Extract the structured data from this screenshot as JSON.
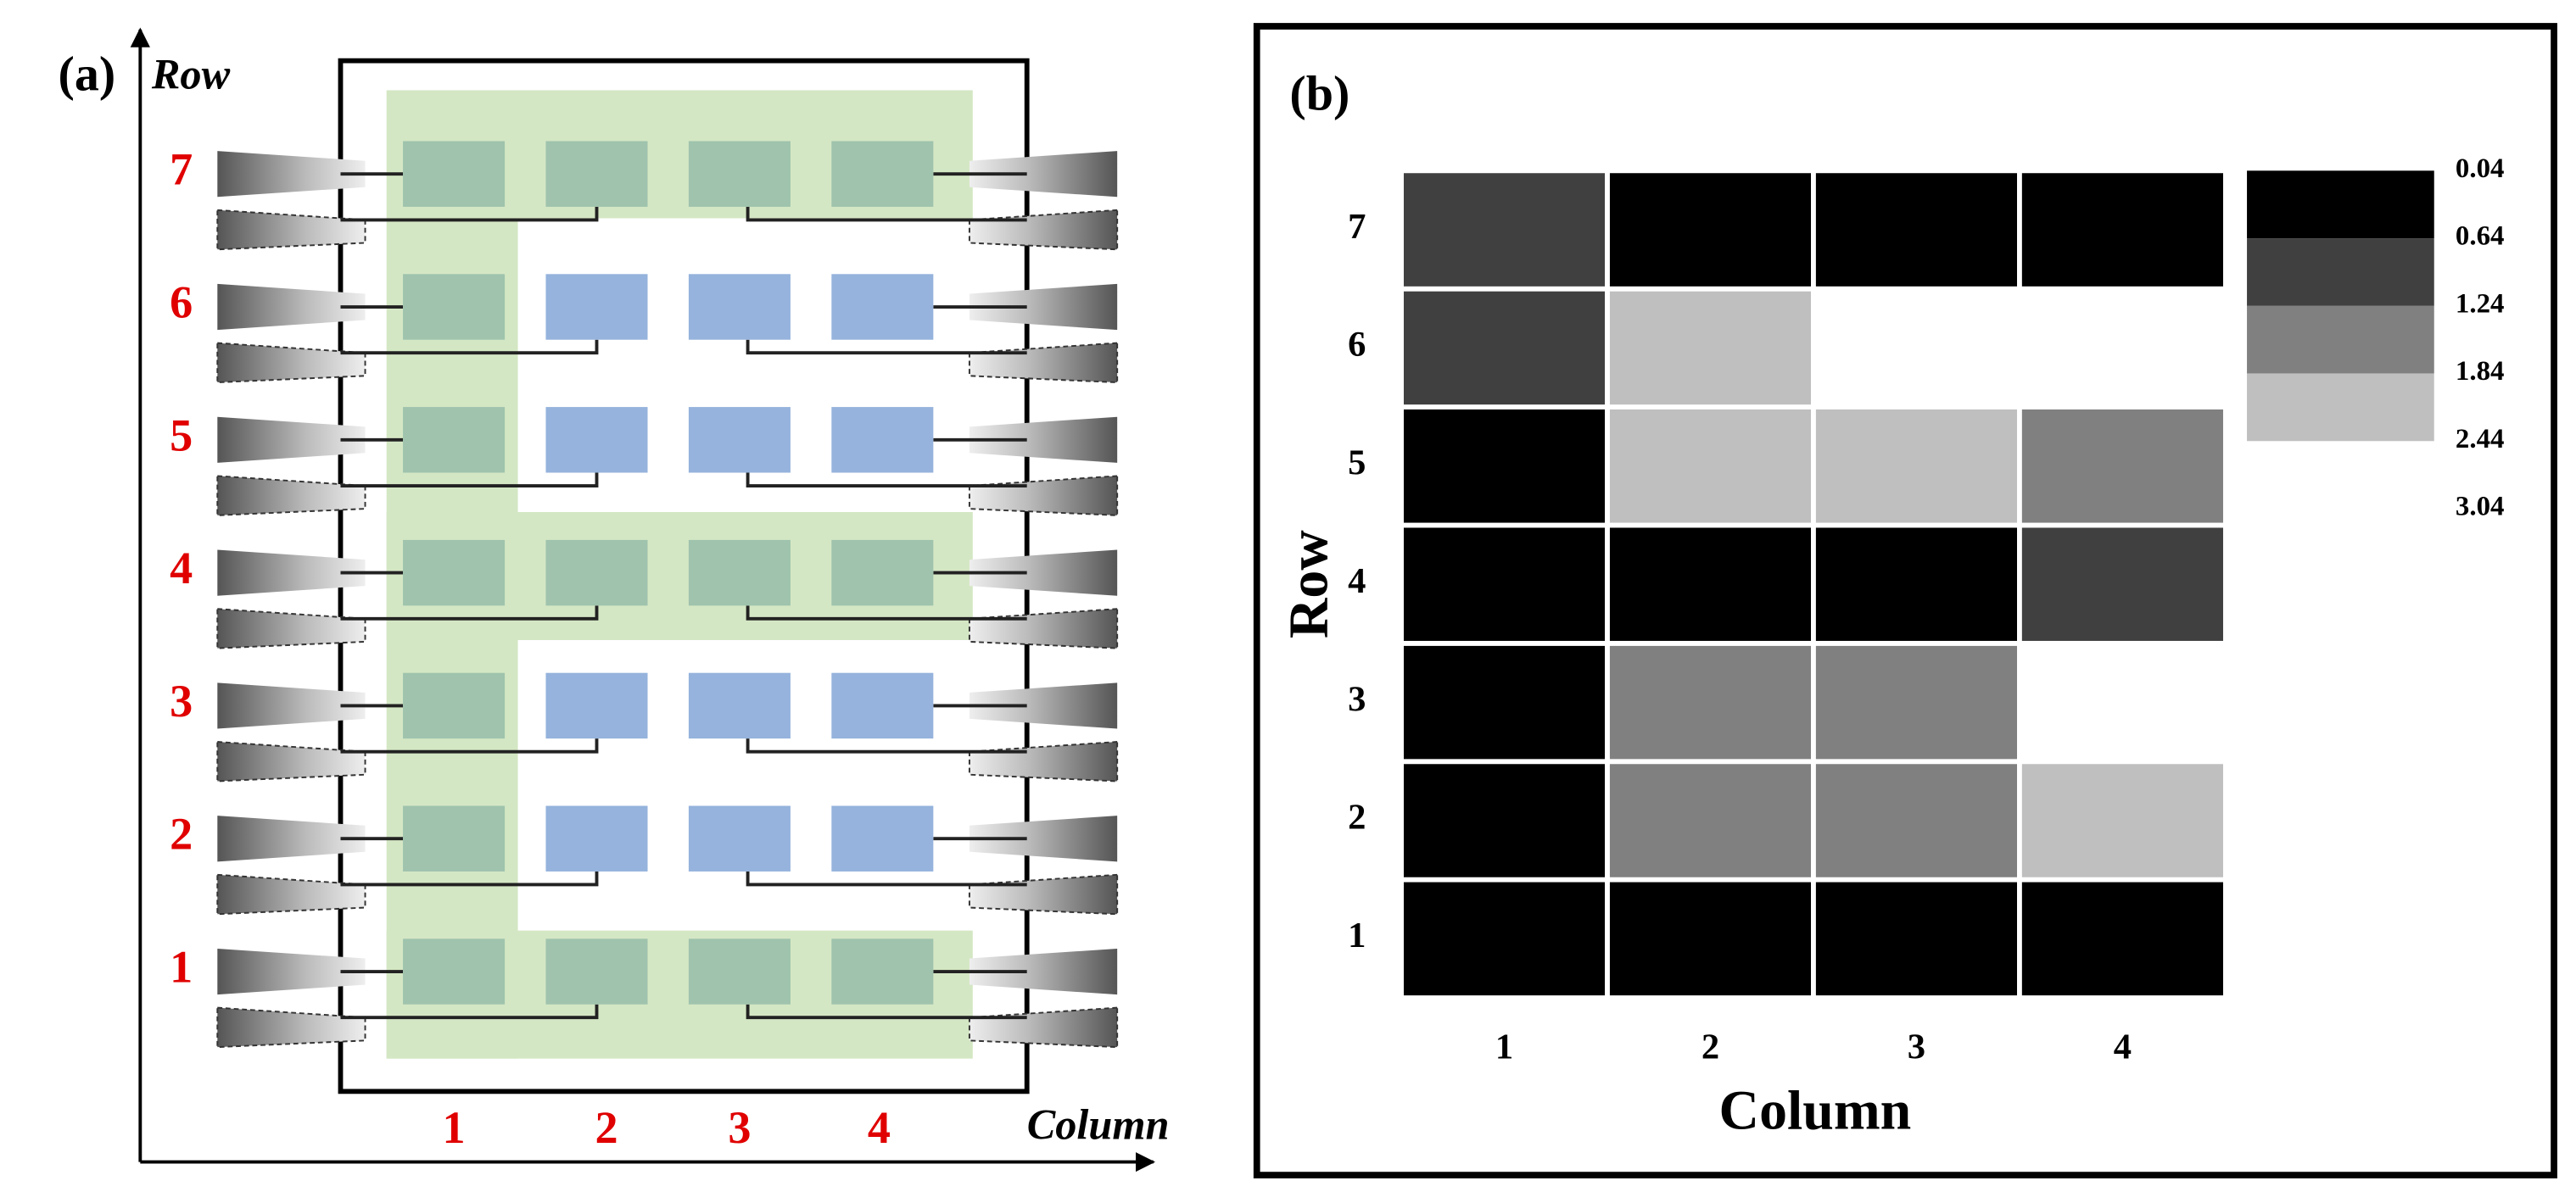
{
  "panel_a": {
    "label": "(a)",
    "y_axis_label": "Row",
    "x_axis_label": "Column",
    "row_labels": [
      "1",
      "2",
      "3",
      "4",
      "5",
      "6",
      "7"
    ],
    "column_labels": [
      "1",
      "2",
      "3",
      "4"
    ]
  },
  "chart_data": {
    "type": "heatmap",
    "label": "(b)",
    "xlabel": "Column",
    "ylabel": "Row",
    "x": [
      "1",
      "2",
      "3",
      "4"
    ],
    "y": [
      "1",
      "2",
      "3",
      "4",
      "5",
      "6",
      "7"
    ],
    "values": [
      [
        0.34,
        0.34,
        0.34,
        0.34
      ],
      [
        0.34,
        1.54,
        1.54,
        2.14
      ],
      [
        0.34,
        1.54,
        1.54,
        2.74
      ],
      [
        0.34,
        0.34,
        0.34,
        0.94
      ],
      [
        0.34,
        2.14,
        2.14,
        1.54
      ],
      [
        0.94,
        2.14,
        2.74,
        2.74
      ],
      [
        0.94,
        0.34,
        0.34,
        0.34
      ]
    ],
    "colorbar": {
      "bounds": [
        0.04,
        0.64,
        1.24,
        1.84,
        2.44,
        3.04
      ],
      "colors": [
        "#000000",
        "#404040",
        "#808080",
        "#bfbfbf",
        "#ffffff"
      ]
    }
  }
}
